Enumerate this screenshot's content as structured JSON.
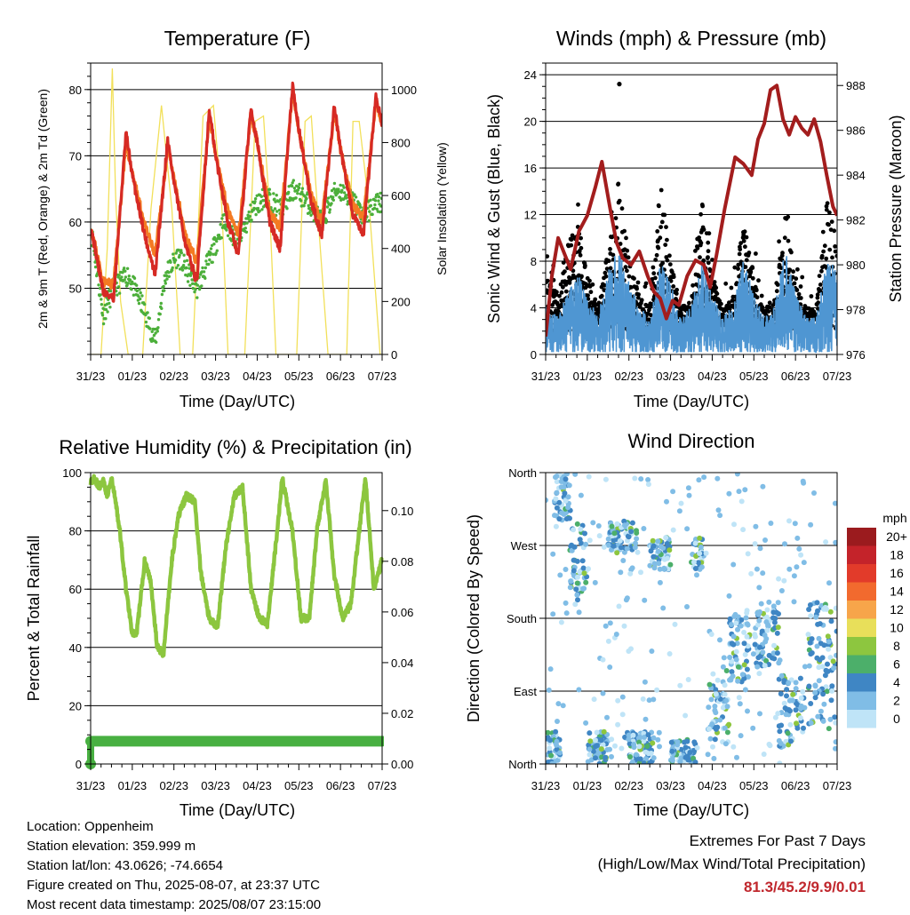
{
  "colors": {
    "temp_2m": "#d62a24",
    "temp_9m": "#f47a22",
    "dewpoint": "#4caf3a",
    "solar": "#f2e05a",
    "wind": "#4f96d2",
    "gust": "#000000",
    "pressure": "#a31d1d",
    "rh": "#8cc63f",
    "precip": "#48b041",
    "extremes": "#c0272d"
  },
  "footer": {
    "location": "Location: Oppenheim",
    "elevation": "Station elevation: 359.999 m",
    "latlon": "Station lat/lon: 43.0626; -74.6654",
    "created": "Figure created on Thu, 2025-08-07, at 23:37 UTC",
    "recent": "Most recent data timestamp: 2025/08/07 23:15:00"
  },
  "extremes": {
    "title": "Extremes For Past 7 Days",
    "subtitle": "(High/Low/Max Wind/Total Precipitation)",
    "values": "81.3/45.2/9.9/0.01"
  },
  "chart_data": [
    {
      "id": "temperature",
      "type": "line",
      "title": "Temperature (F)",
      "xlabel": "Time (Day/UTC)",
      "ylabel": "2m & 9m T (Red, Orange) & 2m Td (Green)",
      "ylabel_right": "Solar Insolation (Yellow)",
      "x_ticks": [
        "31/23",
        "01/23",
        "02/23",
        "03/23",
        "04/23",
        "05/23",
        "06/23",
        "07/23"
      ],
      "xlim": [
        0,
        7
      ],
      "ylim": [
        40,
        84
      ],
      "y_ticks": [
        50,
        60,
        70,
        80
      ],
      "ylim_right": [
        0,
        1100
      ],
      "y_ticks_right": [
        0,
        200,
        400,
        600,
        800,
        1000
      ],
      "grid": "horizontal",
      "series": [
        {
          "key": "t2m",
          "color_key": "temp_2m",
          "x": [
            0,
            0.3,
            0.55,
            0.85,
            1.0,
            1.3,
            1.55,
            1.85,
            2.0,
            2.3,
            2.55,
            2.85,
            3.0,
            3.3,
            3.55,
            3.85,
            4.0,
            4.3,
            4.55,
            4.85,
            5.0,
            5.3,
            5.55,
            5.85,
            6.0,
            6.3,
            6.55,
            6.85,
            7.0
          ],
          "y": [
            59.5,
            49.5,
            48.5,
            73.5,
            67,
            58,
            52,
            72.5,
            66,
            56,
            51,
            77,
            70,
            60,
            55,
            77.5,
            72,
            60,
            56,
            80.5,
            74,
            63,
            58,
            77.5,
            71,
            61,
            58,
            79,
            75
          ]
        },
        {
          "key": "t9m",
          "color_key": "temp_9m",
          "x": [
            0,
            0.3,
            0.55,
            0.85,
            1.0,
            1.3,
            1.55,
            1.85,
            2.0,
            2.3,
            2.55,
            2.85,
            3.0,
            3.3,
            3.55,
            3.85,
            4.0,
            4.3,
            4.55,
            4.85,
            5.0,
            5.3,
            5.55,
            5.85,
            6.0,
            6.3,
            6.55,
            6.85,
            7.0
          ],
          "y": [
            59.5,
            51,
            50.5,
            72,
            67.5,
            59.5,
            55,
            71,
            66.5,
            57.5,
            54,
            76,
            70.5,
            61.5,
            58,
            76.5,
            72,
            61.5,
            59,
            79.5,
            74,
            64,
            60,
            76.5,
            71,
            62.5,
            60.5,
            78,
            75
          ]
        },
        {
          "key": "td",
          "color_key": "dewpoint",
          "x": [
            0,
            0.3,
            0.55,
            0.9,
            1.2,
            1.55,
            1.8,
            2.1,
            2.55,
            2.9,
            3.2,
            3.55,
            3.9,
            4.2,
            4.55,
            4.9,
            5.2,
            5.55,
            5.9,
            6.2,
            6.55,
            6.9,
            7.0
          ],
          "y": [
            59.5,
            46,
            50,
            52,
            48,
            42,
            52,
            55,
            50,
            55,
            60,
            57,
            62,
            64,
            62,
            65,
            63,
            60,
            65,
            64,
            61,
            63,
            63
          ]
        },
        {
          "key": "solar",
          "axis": "right",
          "color_key": "solar",
          "x": [
            0,
            0.25,
            0.4,
            0.52,
            0.6,
            0.72,
            0.9,
            1.1,
            1.25,
            1.45,
            1.7,
            1.95,
            2.15,
            2.3,
            2.45,
            2.7,
            2.95,
            3.15,
            3.3,
            3.45,
            3.7,
            3.95,
            4.15,
            4.3,
            4.45,
            4.7,
            4.95,
            5.15,
            5.3,
            5.45,
            5.7,
            5.95,
            6.15,
            6.3,
            6.45,
            6.7,
            6.95,
            7.0
          ],
          "y": [
            0,
            0,
            400,
            1080,
            600,
            200,
            0,
            0,
            0,
            550,
            940,
            550,
            0,
            0,
            0,
            900,
            940,
            560,
            0,
            0,
            0,
            880,
            900,
            540,
            0,
            0,
            0,
            880,
            900,
            540,
            0,
            0,
            0,
            880,
            880,
            540,
            0,
            0
          ]
        }
      ]
    },
    {
      "id": "winds",
      "type": "scatter",
      "title": "Winds (mph) & Pressure (mb)",
      "xlabel": "Time (Day/UTC)",
      "ylabel": "Sonic Wind & Gust (Blue, Black)",
      "ylabel_right": "Station Pressure (Maroon)",
      "x_ticks": [
        "31/23",
        "01/23",
        "02/23",
        "03/23",
        "04/23",
        "05/23",
        "06/23",
        "07/23"
      ],
      "xlim": [
        0,
        7
      ],
      "ylim": [
        0,
        25
      ],
      "y_ticks": [
        0,
        4,
        8,
        12,
        16,
        20,
        24
      ],
      "ylim_right": [
        976,
        989
      ],
      "y_ticks_right": [
        976,
        978,
        980,
        982,
        984,
        986,
        988
      ],
      "grid": "horizontal",
      "series": [
        {
          "key": "wind_peaks",
          "color_key": "wind",
          "x": [
            0,
            0.3,
            0.5,
            0.75,
            1.0,
            1.25,
            1.5,
            1.75,
            2.0,
            2.25,
            2.5,
            2.75,
            3.0,
            3.25,
            3.5,
            3.75,
            4.0,
            4.25,
            4.5,
            4.75,
            5.0,
            5.25,
            5.5,
            5.75,
            6.0,
            6.25,
            6.5,
            6.75,
            7.0
          ],
          "y": [
            3,
            2,
            4,
            6,
            4,
            2,
            6,
            8,
            5,
            3,
            2,
            7,
            5,
            2,
            3,
            7,
            4,
            2,
            3,
            7,
            4,
            2,
            3,
            8,
            4,
            2,
            2,
            7,
            7
          ]
        },
        {
          "key": "gust_peaks",
          "color_key": "gust",
          "x": [
            0,
            0.3,
            0.5,
            0.75,
            1.0,
            1.25,
            1.5,
            1.75,
            2.0,
            2.25,
            2.5,
            2.75,
            3.0,
            3.25,
            3.5,
            3.75,
            4.0,
            4.25,
            4.5,
            4.75,
            5.0,
            5.25,
            5.5,
            5.75,
            6.0,
            6.25,
            6.5,
            6.75,
            7.0
          ],
          "y": [
            9,
            5,
            9,
            12,
            7,
            4,
            9,
            15,
            8,
            5,
            4,
            15,
            8,
            4,
            5,
            14,
            7,
            4,
            5,
            12,
            7,
            4,
            5,
            13,
            6,
            4,
            4,
            14,
            10
          ]
        },
        {
          "key": "gust_max",
          "color_key": "gust",
          "x": [
            1.77
          ],
          "y": [
            23.2
          ]
        },
        {
          "key": "pressure",
          "axis": "right",
          "color_key": "pressure",
          "x": [
            0,
            0.15,
            0.3,
            0.45,
            0.6,
            0.8,
            1.0,
            1.2,
            1.35,
            1.55,
            1.7,
            1.85,
            2.05,
            2.25,
            2.45,
            2.6,
            2.75,
            2.9,
            3.05,
            3.2,
            3.4,
            3.6,
            3.8,
            3.95,
            4.1,
            4.3,
            4.55,
            4.75,
            4.95,
            5.1,
            5.25,
            5.4,
            5.55,
            5.7,
            5.85,
            6.0,
            6.15,
            6.3,
            6.45,
            6.6,
            6.75,
            6.9,
            7.0
          ],
          "y": [
            976.8,
            979.5,
            981.2,
            980.5,
            979.8,
            981.5,
            982.2,
            983.5,
            984.6,
            982.5,
            981.0,
            980.3,
            980.0,
            980.6,
            979.5,
            978.8,
            978.5,
            977.6,
            978.4,
            978.2,
            979.5,
            980.2,
            980.0,
            979.0,
            980.4,
            982.5,
            984.8,
            984.5,
            984.0,
            985.6,
            986.3,
            987.8,
            988.0,
            986.5,
            985.8,
            986.6,
            986.1,
            985.8,
            986.5,
            985.5,
            984.0,
            982.6,
            982.2
          ]
        }
      ]
    },
    {
      "id": "humidity",
      "type": "line",
      "title": "Relative Humidity (%) & Precipitation (in)",
      "xlabel": "Time (Day/UTC)",
      "ylabel": "Percent & Total Rainfall",
      "x_ticks": [
        "31/23",
        "01/23",
        "02/23",
        "03/23",
        "04/23",
        "05/23",
        "06/23",
        "07/23"
      ],
      "xlim": [
        0,
        7
      ],
      "ylim": [
        0,
        100
      ],
      "y_ticks": [
        0,
        20,
        40,
        60,
        80,
        100
      ],
      "ylim_right": [
        0,
        0.115
      ],
      "y_ticks_right": [
        "0.00",
        "0.02",
        "0.04",
        "0.06",
        "0.08",
        "0.10"
      ],
      "grid": "horizontal",
      "series": [
        {
          "key": "rh",
          "color_key": "rh",
          "x": [
            0,
            0.1,
            0.2,
            0.3,
            0.4,
            0.5,
            0.6,
            0.7,
            0.85,
            1.0,
            1.1,
            1.3,
            1.45,
            1.6,
            1.75,
            1.95,
            2.1,
            2.3,
            2.5,
            2.65,
            2.85,
            3.05,
            3.25,
            3.45,
            3.65,
            3.85,
            4.05,
            4.25,
            4.45,
            4.6,
            4.85,
            5.05,
            5.25,
            5.45,
            5.65,
            5.85,
            6.05,
            6.25,
            6.45,
            6.6,
            6.8,
            7.0
          ],
          "y": [
            97,
            98,
            95,
            97,
            92,
            98,
            90,
            80,
            60,
            45,
            44,
            70,
            62,
            40,
            38,
            70,
            85,
            92,
            90,
            65,
            50,
            47,
            75,
            92,
            95,
            60,
            50,
            48,
            76,
            98,
            80,
            50,
            50,
            82,
            97,
            65,
            50,
            55,
            80,
            98,
            60,
            70
          ]
        },
        {
          "key": "precip",
          "axis": "right",
          "color_key": "precip",
          "x": [
            0,
            0.01,
            0.05,
            1.0,
            2.0,
            3.0,
            4.0,
            5.0,
            6.0,
            7.0
          ],
          "y": [
            0,
            0.009,
            0.009,
            0.009,
            0.009,
            0.009,
            0.009,
            0.009,
            0.009,
            0.009
          ]
        }
      ]
    },
    {
      "id": "wind_direction",
      "type": "scatter",
      "title": "Wind Direction",
      "xlabel": "Time (Day/UTC)",
      "ylabel": "Direction (Colored By Speed)",
      "x_ticks": [
        "31/23",
        "01/23",
        "02/23",
        "03/23",
        "04/23",
        "05/23",
        "06/23",
        "07/23"
      ],
      "xlim": [
        0,
        7
      ],
      "ylim": [
        0,
        360
      ],
      "y_tick_labels": [
        "North",
        "East",
        "South",
        "West",
        "North"
      ],
      "y_tick_values": [
        0,
        90,
        180,
        270,
        360
      ],
      "grid": "horizontal",
      "legend": {
        "title": "mph",
        "placement": "right",
        "labels": [
          "20+",
          "18",
          "16",
          "14",
          "12",
          "10",
          "8",
          "6",
          "4",
          "2",
          "0"
        ],
        "colors": [
          "#9b1b1e",
          "#c4232a",
          "#e23b2a",
          "#f26a2e",
          "#f7a54a",
          "#e8df5a",
          "#8dc63f",
          "#4caf6a",
          "#3f86c4",
          "#80bde6",
          "#bfe4f7"
        ]
      },
      "bands": [
        {
          "x": [
            0.05,
            0.35
          ],
          "dir": [
            0,
            40
          ]
        },
        {
          "x": [
            0.2,
            0.6
          ],
          "dir": [
            300,
            360
          ]
        },
        {
          "x": [
            0.55,
            1.0
          ],
          "dir": [
            200,
            300
          ]
        },
        {
          "x": [
            1.0,
            1.5
          ],
          "dir": [
            0,
            40
          ]
        },
        {
          "x": [
            1.5,
            2.2
          ],
          "dir": [
            260,
            300
          ]
        },
        {
          "x": [
            1.9,
            2.6
          ],
          "dir": [
            0,
            40
          ]
        },
        {
          "x": [
            2.5,
            3.0
          ],
          "dir": [
            240,
            280
          ]
        },
        {
          "x": [
            3.0,
            3.6
          ],
          "dir": [
            0,
            30
          ]
        },
        {
          "x": [
            3.5,
            3.8
          ],
          "dir": [
            240,
            280
          ]
        },
        {
          "x": [
            3.9,
            4.4
          ],
          "dir": [
            20,
            120
          ]
        },
        {
          "x": [
            4.4,
            4.9
          ],
          "dir": [
            100,
            190
          ]
        },
        {
          "x": [
            5.0,
            5.6
          ],
          "dir": [
            120,
            200
          ]
        },
        {
          "x": [
            5.6,
            6.2
          ],
          "dir": [
            20,
            110
          ]
        },
        {
          "x": [
            6.3,
            7.0
          ],
          "dir": [
            40,
            200
          ]
        }
      ]
    }
  ]
}
